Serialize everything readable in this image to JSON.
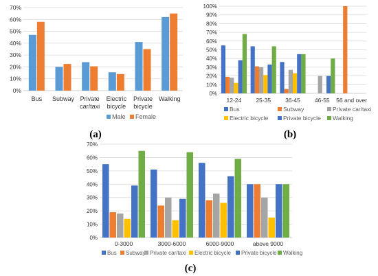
{
  "panel_labels": [
    "(a)",
    "(b)",
    "(c)"
  ],
  "colors": {
    "bus": "#4472C4",
    "subway": "#ED7D31",
    "private_car_taxi": "#A5A5A5",
    "electric_bicycle": "#FFC000",
    "private_bicycle": "#4472C4",
    "walking": "#70AD47",
    "male": "#5B9BD5",
    "female": "#ED7D31",
    "grid": "#d9d9d9",
    "axis": "#bfbfbf",
    "text": "#333333",
    "legend_text": "#595959"
  },
  "chart_data": [
    {
      "type": "bar",
      "panel": "(a)",
      "categories": [
        "Bus",
        "Subway",
        "Private car/taxi",
        "Electric bicycle",
        "Private bicycle",
        "Walking"
      ],
      "series": [
        {
          "name": "Male",
          "values": [
            47,
            20,
            24,
            15.5,
            41,
            62
          ]
        },
        {
          "name": "Female",
          "values": [
            58,
            22.5,
            20.5,
            14,
            35,
            65
          ]
        }
      ],
      "ylim": [
        0,
        70
      ],
      "yticks": [
        0,
        10,
        20,
        30,
        40,
        50,
        60,
        70
      ],
      "ytick_labels": [
        "0%",
        "10%",
        "20%",
        "30%",
        "40%",
        "50%",
        "60%",
        "70%"
      ],
      "legend": "bottom",
      "grid": true
    },
    {
      "type": "bar",
      "panel": "(b)",
      "categories": [
        "12-24",
        "25-35",
        "36-45",
        "46-55",
        "56 and over"
      ],
      "series": [
        {
          "name": "Bus",
          "values": [
            55,
            54,
            36,
            0,
            0
          ]
        },
        {
          "name": "Subway",
          "values": [
            19,
            31,
            5,
            0,
            100
          ]
        },
        {
          "name": "Private car/taxi",
          "values": [
            18,
            30,
            27,
            20,
            0
          ]
        },
        {
          "name": "Electric bicycle",
          "values": [
            12,
            21,
            23,
            0,
            0
          ]
        },
        {
          "name": "Private bicycle",
          "values": [
            38,
            33,
            45,
            20,
            0
          ]
        },
        {
          "name": "Walking",
          "values": [
            68,
            54,
            45,
            40,
            0
          ]
        }
      ],
      "ylim": [
        0,
        100
      ],
      "yticks": [
        0,
        10,
        20,
        30,
        40,
        50,
        60,
        70,
        80,
        90,
        100
      ],
      "ytick_labels": [
        "0%",
        "10%",
        "20%",
        "30%",
        "40%",
        "50%",
        "60%",
        "70%",
        "80%",
        "90%",
        "100%"
      ],
      "legend": "bottom",
      "grid": true
    },
    {
      "type": "bar",
      "panel": "(c)",
      "categories": [
        "0-3000",
        "3000-6000",
        "6000-9000",
        "above 9000"
      ],
      "series": [
        {
          "name": "Bus",
          "values": [
            55,
            51,
            56,
            40
          ]
        },
        {
          "name": "Subway",
          "values": [
            19,
            24,
            28,
            40
          ]
        },
        {
          "name": "Private car/taxi",
          "values": [
            18,
            30,
            33,
            30
          ]
        },
        {
          "name": "Electric bicycle",
          "values": [
            14,
            13,
            26,
            15
          ]
        },
        {
          "name": "Private bicycle",
          "values": [
            39,
            29,
            46,
            40
          ]
        },
        {
          "name": "Walking",
          "values": [
            65,
            64,
            59,
            40
          ]
        }
      ],
      "ylim": [
        0,
        70
      ],
      "yticks": [
        0,
        10,
        20,
        30,
        40,
        50,
        60,
        70
      ],
      "ytick_labels": [
        "0%",
        "10%",
        "20%",
        "30%",
        "40%",
        "50%",
        "60%",
        "70%"
      ],
      "legend": "bottom",
      "grid": true
    }
  ]
}
